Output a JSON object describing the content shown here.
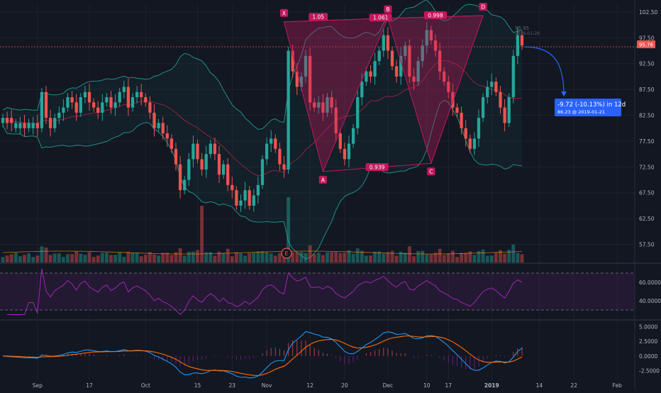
{
  "chart_data": [
    {
      "type": "candlestick",
      "title": "",
      "x_tick_labels": [
        "Sep",
        "17",
        "Oct",
        "15",
        "23",
        "Nov",
        "12",
        "20",
        "Dec",
        "10",
        "17",
        "2019",
        "14",
        "22",
        "Feb"
      ],
      "y_tick_labels": [
        "102.50",
        "97.50",
        "92.50",
        "87.50",
        "82.50",
        "77.50",
        "72.50",
        "67.50",
        "62.50",
        "57.50"
      ],
      "ylim": [
        54,
        104
      ],
      "last_price": "95.76",
      "open_close_pairs": [
        [
          81,
          82
        ],
        [
          82,
          81
        ],
        [
          82,
          81
        ],
        [
          80,
          81
        ],
        [
          80,
          81
        ],
        [
          81,
          80
        ],
        [
          80,
          81
        ],
        [
          80,
          81
        ],
        [
          81,
          80
        ],
        [
          80,
          87
        ],
        [
          87,
          82
        ],
        [
          82,
          80
        ],
        [
          80,
          82
        ],
        [
          82,
          83
        ],
        [
          83,
          84
        ],
        [
          84,
          86
        ],
        [
          86,
          85
        ],
        [
          85,
          83
        ],
        [
          83,
          86
        ],
        [
          86,
          87
        ],
        [
          87,
          85
        ],
        [
          85,
          84
        ],
        [
          84,
          83
        ],
        [
          83,
          85
        ],
        [
          85,
          86
        ],
        [
          86,
          84
        ],
        [
          84,
          85
        ],
        [
          85,
          87
        ],
        [
          87,
          88
        ],
        [
          88,
          84
        ],
        [
          84,
          86
        ],
        [
          86,
          87
        ],
        [
          87,
          86
        ],
        [
          86,
          85
        ],
        [
          85,
          83
        ],
        [
          83,
          80
        ],
        [
          80,
          81
        ],
        [
          81,
          79
        ],
        [
          79,
          78
        ],
        [
          78,
          76
        ],
        [
          76,
          73
        ],
        [
          73,
          68
        ],
        [
          68,
          70
        ],
        [
          70,
          74
        ],
        [
          74,
          77
        ],
        [
          77,
          74
        ],
        [
          74,
          72
        ],
        [
          72,
          75
        ],
        [
          75,
          77
        ],
        [
          77,
          75
        ],
        [
          75,
          71
        ],
        [
          71,
          73
        ],
        [
          73,
          69
        ],
        [
          69,
          68
        ],
        [
          68,
          65
        ],
        [
          65,
          66
        ],
        [
          66,
          68
        ],
        [
          68,
          65
        ],
        [
          65,
          67
        ],
        [
          67,
          69
        ],
        [
          69,
          74
        ],
        [
          74,
          77
        ],
        [
          77,
          78
        ],
        [
          78,
          76
        ],
        [
          76,
          73
        ],
        [
          73,
          72
        ],
        [
          72,
          95
        ],
        [
          95,
          91
        ],
        [
          91,
          88
        ],
        [
          88,
          90
        ],
        [
          90,
          94
        ],
        [
          94,
          85
        ],
        [
          85,
          84
        ],
        [
          84,
          85
        ],
        [
          85,
          83
        ],
        [
          83,
          86
        ],
        [
          86,
          84
        ],
        [
          84,
          79
        ],
        [
          79,
          76
        ],
        [
          76,
          74
        ],
        [
          74,
          77
        ],
        [
          77,
          80
        ],
        [
          80,
          86
        ],
        [
          86,
          89
        ],
        [
          89,
          91
        ],
        [
          91,
          90
        ],
        [
          90,
          93
        ],
        [
          93,
          95
        ],
        [
          95,
          98
        ],
        [
          98,
          95
        ],
        [
          95,
          92
        ],
        [
          92,
          90
        ],
        [
          90,
          94
        ],
        [
          94,
          96
        ],
        [
          96,
          90
        ],
        [
          90,
          89
        ],
        [
          89,
          93
        ],
        [
          93,
          96
        ],
        [
          96,
          99
        ],
        [
          99,
          97
        ],
        [
          97,
          95
        ],
        [
          95,
          91
        ],
        [
          91,
          89
        ],
        [
          89,
          87
        ],
        [
          87,
          84
        ],
        [
          84,
          83
        ],
        [
          83,
          80
        ],
        [
          80,
          78
        ],
        [
          78,
          76
        ],
        [
          76,
          78
        ],
        [
          78,
          82
        ],
        [
          82,
          86
        ],
        [
          86,
          88
        ],
        [
          88,
          89
        ],
        [
          89,
          87
        ],
        [
          87,
          84
        ],
        [
          84,
          81
        ],
        [
          81,
          86
        ],
        [
          86,
          94
        ],
        [
          94,
          98
        ],
        [
          98,
          96
        ]
      ]
    },
    {
      "type": "line",
      "title": "",
      "y_tick_labels": [
        "60.0000",
        "40.0000"
      ],
      "ylim": [
        20,
        80
      ]
    },
    {
      "type": "line",
      "title": "",
      "y_tick_labels": [
        "5.0000",
        "2.5000",
        "0.0000",
        "-2.5000"
      ],
      "ylim": [
        -4,
        6
      ]
    }
  ],
  "pattern": {
    "points": [
      {
        "label": "X",
        "date_index": 65,
        "price": 100.6
      },
      {
        "label": "A",
        "date_index": 74,
        "price": 71.6
      },
      {
        "label": "B",
        "date_index": 89,
        "price": 101.3
      },
      {
        "label": "C",
        "date_index": 99,
        "price": 73.2
      },
      {
        "label": "D",
        "date_index": 111,
        "price": 101.8
      }
    ],
    "ratios": [
      {
        "id": "xa_b",
        "text": "1.05"
      },
      {
        "id": "ab_c",
        "text": "1.061"
      },
      {
        "id": "bc_d",
        "text": "0.998"
      },
      {
        "id": "ac",
        "text": "0.939"
      }
    ]
  },
  "projection": {
    "line1": "-9.72 (-10.13%) in 12d",
    "line2": "86.23 @ 2019-01-21"
  },
  "markers": {
    "event_letter": "E",
    "faint_price": "95.95",
    "faint_date": "2019-01-29"
  },
  "colors": {
    "background": "#131722",
    "up": "#26a69a",
    "down": "#ef5350",
    "pattern": "#c2185b",
    "bollinger": "#1f8f85",
    "rsi": "#9c27b0",
    "macd": "#2196f3",
    "signal": "#ff6d00",
    "projection": "#2962ff"
  }
}
